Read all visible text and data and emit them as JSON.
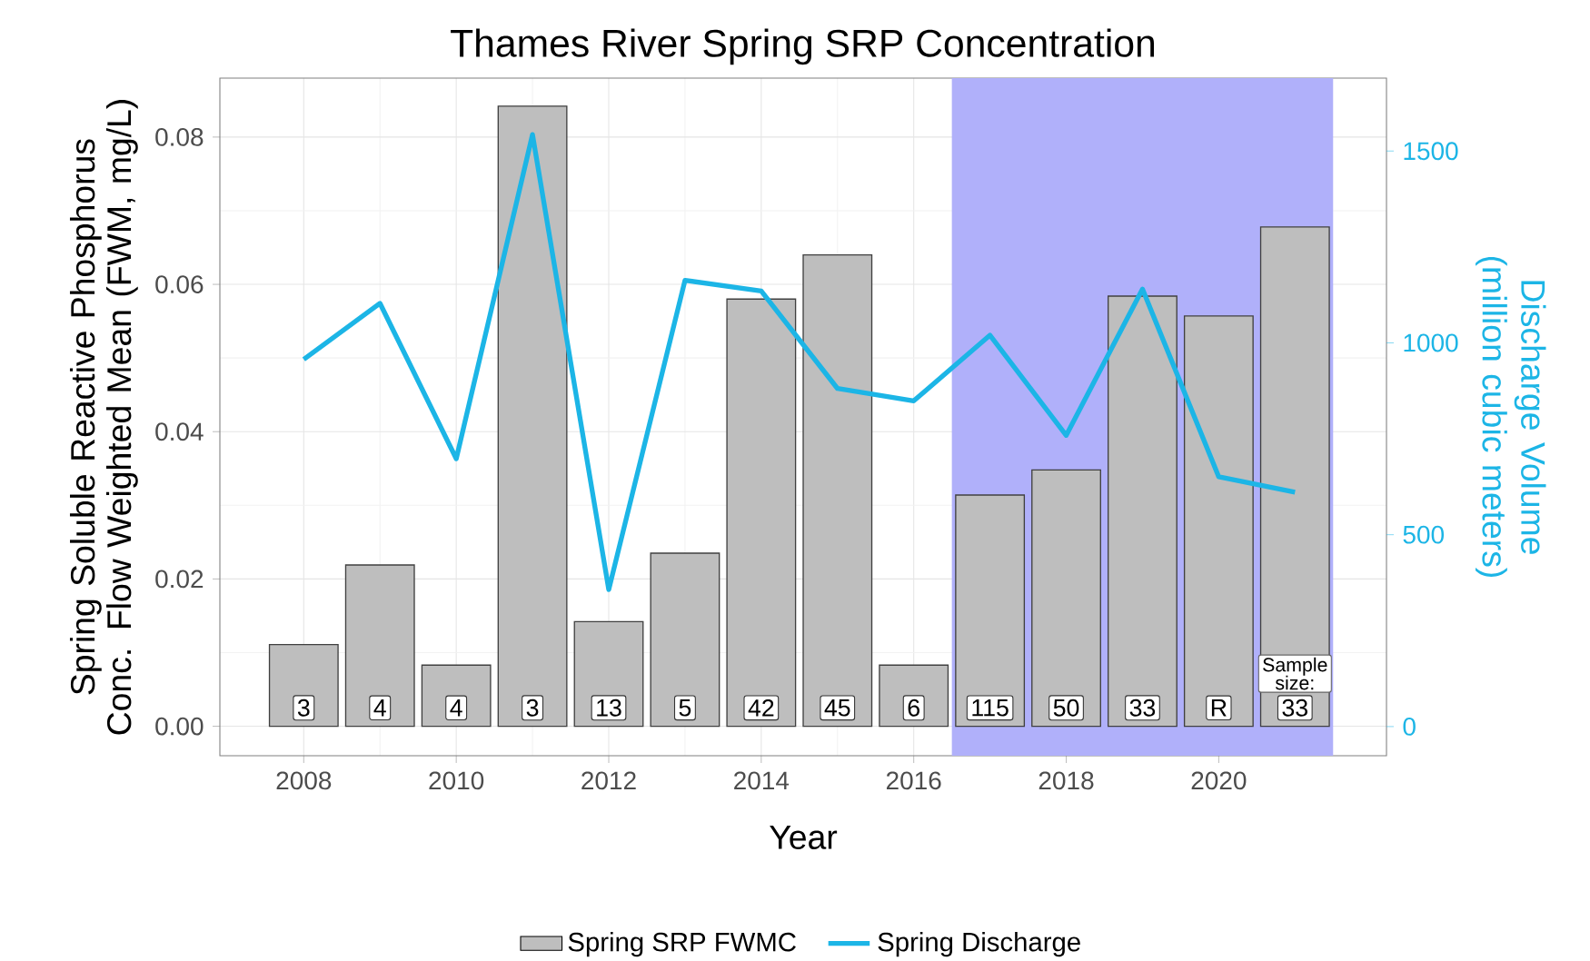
{
  "chart_data": {
    "type": "bar",
    "title": "Thames River Spring SRP Concentration",
    "xlabel": "Year",
    "ylabel": "Spring Soluble Reactive Phosphorus Conc. Flow Weighted Mean (FWM, mg/L)",
    "y2label": "Discharge Volume (million cubic meters)",
    "x": [
      2008,
      2009,
      2010,
      2011,
      2012,
      2013,
      2014,
      2015,
      2016,
      2017,
      2018,
      2019,
      2020,
      2021
    ],
    "series": [
      {
        "name": "Spring SRP FWMC",
        "color": "#bebebe",
        "values": [
          0.0111,
          0.0219,
          0.0083,
          0.0842,
          0.0142,
          0.0235,
          0.058,
          0.064,
          0.0083,
          0.0314,
          0.0348,
          0.0584,
          0.0557,
          0.0678
        ]
      },
      {
        "name": "Spring Discharge",
        "type": "line",
        "axis": "y2",
        "color": "#1cb5e6",
        "values": [
          957,
          1103,
          698,
          1543,
          357,
          1163,
          1135,
          881,
          849,
          1020,
          759,
          1140,
          651,
          611
        ]
      }
    ],
    "xlim": [
      2006.9,
      2022.2
    ],
    "xticks": [
      2008,
      2010,
      2012,
      2014,
      2016,
      2018,
      2020
    ],
    "ylim": [
      -0.004,
      0.088
    ],
    "yticks": [
      {
        "value": 0,
        "label": "0.00"
      },
      {
        "value": 0.02,
        "label": "0.02"
      },
      {
        "value": 0.04,
        "label": "0.04"
      },
      {
        "value": 0.06,
        "label": "0.06"
      },
      {
        "value": 0.08,
        "label": "0.08"
      }
    ],
    "y2lim": [
      -76,
      1690
    ],
    "y2ticks": [
      0,
      500,
      1000,
      1500
    ],
    "bands": [
      {
        "axis": "x",
        "from": 2016.5,
        "to": 2021.5,
        "color": "#b0b0fa"
      }
    ],
    "annotations": [
      {
        "text": "3",
        "x": 2008,
        "y": 0.0025
      },
      {
        "text": "4",
        "x": 2009,
        "y": 0.0025
      },
      {
        "text": "4",
        "x": 2010,
        "y": 0.0025
      },
      {
        "text": "3",
        "x": 2011,
        "y": 0.0025
      },
      {
        "text": "13",
        "x": 2012,
        "y": 0.0025
      },
      {
        "text": "5",
        "x": 2013,
        "y": 0.0025
      },
      {
        "text": "42",
        "x": 2014,
        "y": 0.0025
      },
      {
        "text": "45",
        "x": 2015,
        "y": 0.0025
      },
      {
        "text": "6",
        "x": 2016,
        "y": 0.0025
      },
      {
        "text": "115",
        "x": 2017,
        "y": 0.0025
      },
      {
        "text": "50",
        "x": 2018,
        "y": 0.0025
      },
      {
        "text": "33",
        "x": 2019,
        "y": 0.0025
      },
      {
        "text": "R",
        "x": 2020,
        "y": 0.0025
      },
      {
        "text": "33",
        "x": 2021,
        "y": 0.0025
      },
      "Sample size:"
    ],
    "grid": true,
    "legend": "bottom"
  }
}
